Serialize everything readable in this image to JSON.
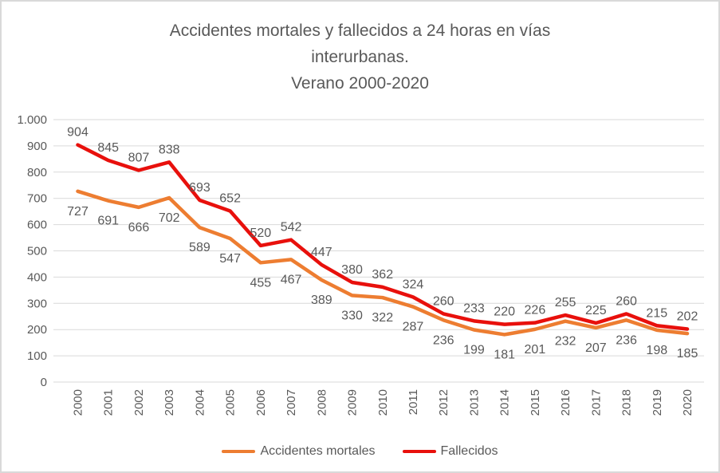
{
  "title": {
    "lines": [
      "Accidentes mortales y fallecidos a 24 horas en vías",
      "interurbanas.",
      "Verano 2000-2020"
    ]
  },
  "chart_data": {
    "type": "line",
    "title": "Accidentes mortales y fallecidos a 24 horas en vías interurbanas. Verano 2000-2020",
    "categories": [
      "2000",
      "2001",
      "2002",
      "2003",
      "2004",
      "2005",
      "2006",
      "2007",
      "2008",
      "2009",
      "2010",
      "2011",
      "2012",
      "2013",
      "2014",
      "2015",
      "2016",
      "2017",
      "2018",
      "2019",
      "2020"
    ],
    "series": [
      {
        "name": "Accidentes mortales",
        "color": "#ED7D31",
        "label_position": "below",
        "values": [
          727,
          691,
          666,
          702,
          589,
          547,
          455,
          467,
          389,
          330,
          322,
          287,
          236,
          199,
          181,
          201,
          232,
          207,
          236,
          198,
          185
        ]
      },
      {
        "name": "Fallecidos",
        "color": "#E8100C",
        "label_position": "above",
        "values": [
          904,
          845,
          807,
          838,
          693,
          652,
          520,
          542,
          447,
          380,
          362,
          324,
          260,
          233,
          220,
          226,
          255,
          225,
          260,
          215,
          202
        ]
      }
    ],
    "xlabel": "",
    "ylabel": "",
    "ylim": [
      0,
      1000
    ],
    "ytick_interval": 100,
    "ytick_labels": [
      "0",
      "100",
      "200",
      "300",
      "400",
      "500",
      "600",
      "700",
      "800",
      "900",
      "1.000"
    ],
    "grid": true,
    "data_labels": true,
    "legend_position": "bottom"
  },
  "colors": {
    "text": "#595959",
    "gridline": "#D9D9D9",
    "background": "#FFFFFF",
    "border": "#D9D9D9"
  }
}
